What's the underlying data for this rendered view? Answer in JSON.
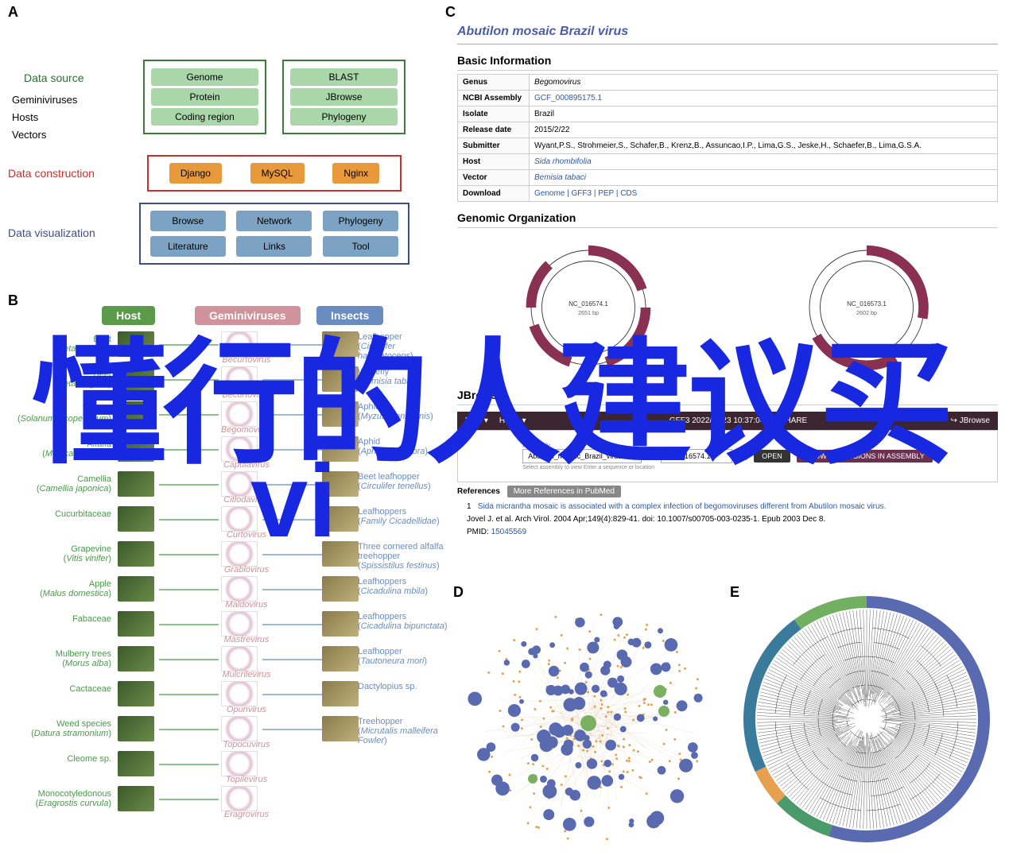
{
  "panels": {
    "A": "A",
    "B": "B",
    "C": "C",
    "D": "D",
    "E": "E"
  },
  "panelA": {
    "layers": {
      "source": {
        "label": "Data source",
        "color": "#2a7030",
        "items": [
          "Geminiviruses",
          "Hosts",
          "Vectors"
        ]
      },
      "construction": {
        "label": "Data construction",
        "color": "#c93030"
      },
      "visualization": {
        "label": "Data visualization",
        "color": "#3d4d8a"
      }
    },
    "green_left": [
      "Genome",
      "Protein",
      "Coding region"
    ],
    "green_right": [
      "BLAST",
      "JBrowse",
      "Phylogeny"
    ],
    "orange": [
      "Django",
      "MySQL",
      "Nginx"
    ],
    "blue": [
      "Browse",
      "Network",
      "Phylogeny",
      "Literature",
      "Links",
      "Tool"
    ],
    "colors": {
      "green_pill": "#a9d7a9",
      "orange_pill": "#e8993c",
      "blue_pill": "#7ca3c4"
    }
  },
  "panelB": {
    "headers": {
      "host": "Host",
      "virus": "Geminiviruses",
      "insect": "Insects"
    },
    "header_colors": {
      "host": "#5a9a4a",
      "virus": "#d0929b",
      "insect": "#6a8cc0"
    },
    "hosts": [
      {
        "common": "Beet",
        "sci": "Beta vulgaris"
      },
      {
        "common": "Beet",
        "sci": "Beta vulgaris"
      },
      {
        "common": "Tomato",
        "sci": "Solanum lycopersicum"
      },
      {
        "common": "Alfalfa",
        "sci": "Medicago sativa"
      },
      {
        "common": "Camellia",
        "sci": "Camellia japonica"
      },
      {
        "common": "Cucurbitaceae",
        "sci": ""
      },
      {
        "common": "Grapevine",
        "sci": "Vitis vinifer"
      },
      {
        "common": "Apple",
        "sci": "Malus domestica"
      },
      {
        "common": "Fabaceae",
        "sci": ""
      },
      {
        "common": "Mulberry trees",
        "sci": "Morus alba"
      },
      {
        "common": "Cactaceae",
        "sci": ""
      },
      {
        "common": "Weed species",
        "sci": "Datura stramonium"
      },
      {
        "common": "Cleome sp.",
        "sci": ""
      },
      {
        "common": "Monocotyledonous",
        "sci": "Eragrostis curvula"
      }
    ],
    "viruses": [
      "Becurtovirus",
      "Becurtovirus",
      "Begomovirus",
      "Capulavirus",
      "Citlodavirus",
      "Curtovirus",
      "Grablovirus",
      "Maldovirus",
      "Mastrevirus",
      "Mulcrilevirus",
      "Opunvirus",
      "Topocuvirus",
      "Topilevirus",
      "Eragrovirus"
    ],
    "insects": [
      {
        "common": "Leafhopper",
        "sci": "Circulifer haematoceps"
      },
      {
        "common": "Whitefly",
        "sci": "Bemisia tabaci"
      },
      {
        "common": "Aphid",
        "sci": "Myzus planicornis"
      },
      {
        "common": "Aphid",
        "sci": "Aphis craccivora"
      },
      {
        "common": "Beet leafhopper",
        "sci": "Circulifer tenellus"
      },
      {
        "common": "Leafhoppers",
        "sci": "Family Cicadellidae"
      },
      {
        "common": "Three cornered alfalfa treehopper",
        "sci": "Spissistilus festinus"
      },
      {
        "common": "Leafhoppers",
        "sci": "Cicadulina mbila"
      },
      {
        "common": "Leafhoppers",
        "sci": "Cicadulina bipunctata"
      },
      {
        "common": "Leafhopper",
        "sci": "Tautoneura mori"
      },
      {
        "common": "Dactylopius sp.",
        "sci": ""
      },
      {
        "common": "Treehopper",
        "sci": "Micrutalis malleifera Fowler"
      }
    ]
  },
  "panelC": {
    "title": "Abutilon mosaic Brazil virus",
    "sections": {
      "basic": "Basic Information",
      "genomic": "Genomic Organization",
      "jbrowse": "JBrowse",
      "refs": "References"
    },
    "info_rows": [
      {
        "k": "Genus",
        "v": "Begomovirus",
        "italic": true
      },
      {
        "k": "NCBI Assembly",
        "v": "GCF_000895175.1",
        "link": true
      },
      {
        "k": "Isolate",
        "v": "Brazil"
      },
      {
        "k": "Release date",
        "v": "2015/2/22"
      },
      {
        "k": "Submitter",
        "v": "Wyant,P.S., Strohmeier,S., Schafer,B., Krenz,B., Assuncao,I.P., Lima,G.S., Jeske,H., Schaefer,B., Lima,G.S.A."
      },
      {
        "k": "Host",
        "v": "Sida rhombifolia",
        "link": true,
        "italic": true
      },
      {
        "k": "Vector",
        "v": "Bemisia tabaci",
        "link": true,
        "italic": true
      },
      {
        "k": "Download",
        "v": "Genome | GFF3 | PEP | CDS",
        "link": true,
        "dl": true
      }
    ],
    "genome_segments": [
      {
        "id": "NC_016574.1",
        "size": "2651 bp"
      },
      {
        "id": "NC_016573.1",
        "size": "2602 bp"
      }
    ],
    "jbrowse": {
      "menu": [
        "FILE ▾",
        "HELP ▾"
      ],
      "timestamp": "GFF3 2022/11/23 10:37:04",
      "share": "⟲ SHARE",
      "logo": "↪ JBrowse",
      "assembly_label": "Assembly",
      "assembly_value": "Abutilon_mosaic_Brazil_virus",
      "region_value": "NC_016574.1",
      "hint": "Select assembly to view         Enter a sequence or location",
      "open_btn": "OPEN",
      "show_btn": "SHOW ALL REGIONS IN ASSEMBLY"
    },
    "refs": {
      "more": "More References in PubMed",
      "item": {
        "num": "1",
        "title": "Sida micrantha mosaic is associated with a complex infection of begomoviruses different from Abutilon mosaic virus.",
        "cite": "Jovel J. et al.  Arch Virol. 2004 Apr;149(4):829-41. doi: 10.1007/s00705-003-0235-1. Epub 2003 Dec 8.",
        "pmid_label": "PMID:",
        "pmid": "15045569"
      }
    }
  },
  "panelD": {
    "type": "network",
    "node_colors": {
      "primary": "#5a6ab0",
      "hub": "#7ab060",
      "small": "#e8a050"
    },
    "edge_color": "#d8c0a0",
    "background": "#ffffff"
  },
  "panelE": {
    "type": "circular_phylogeny",
    "ring_colors": [
      "#5a6ab0",
      "#4a9a6a",
      "#e8a050",
      "#3a7a9a",
      "#70b060"
    ],
    "branch_color": "#333333",
    "background": "#ffffff"
  },
  "watermark": {
    "line1": "懂行的人建议买",
    "line2": "vi"
  }
}
